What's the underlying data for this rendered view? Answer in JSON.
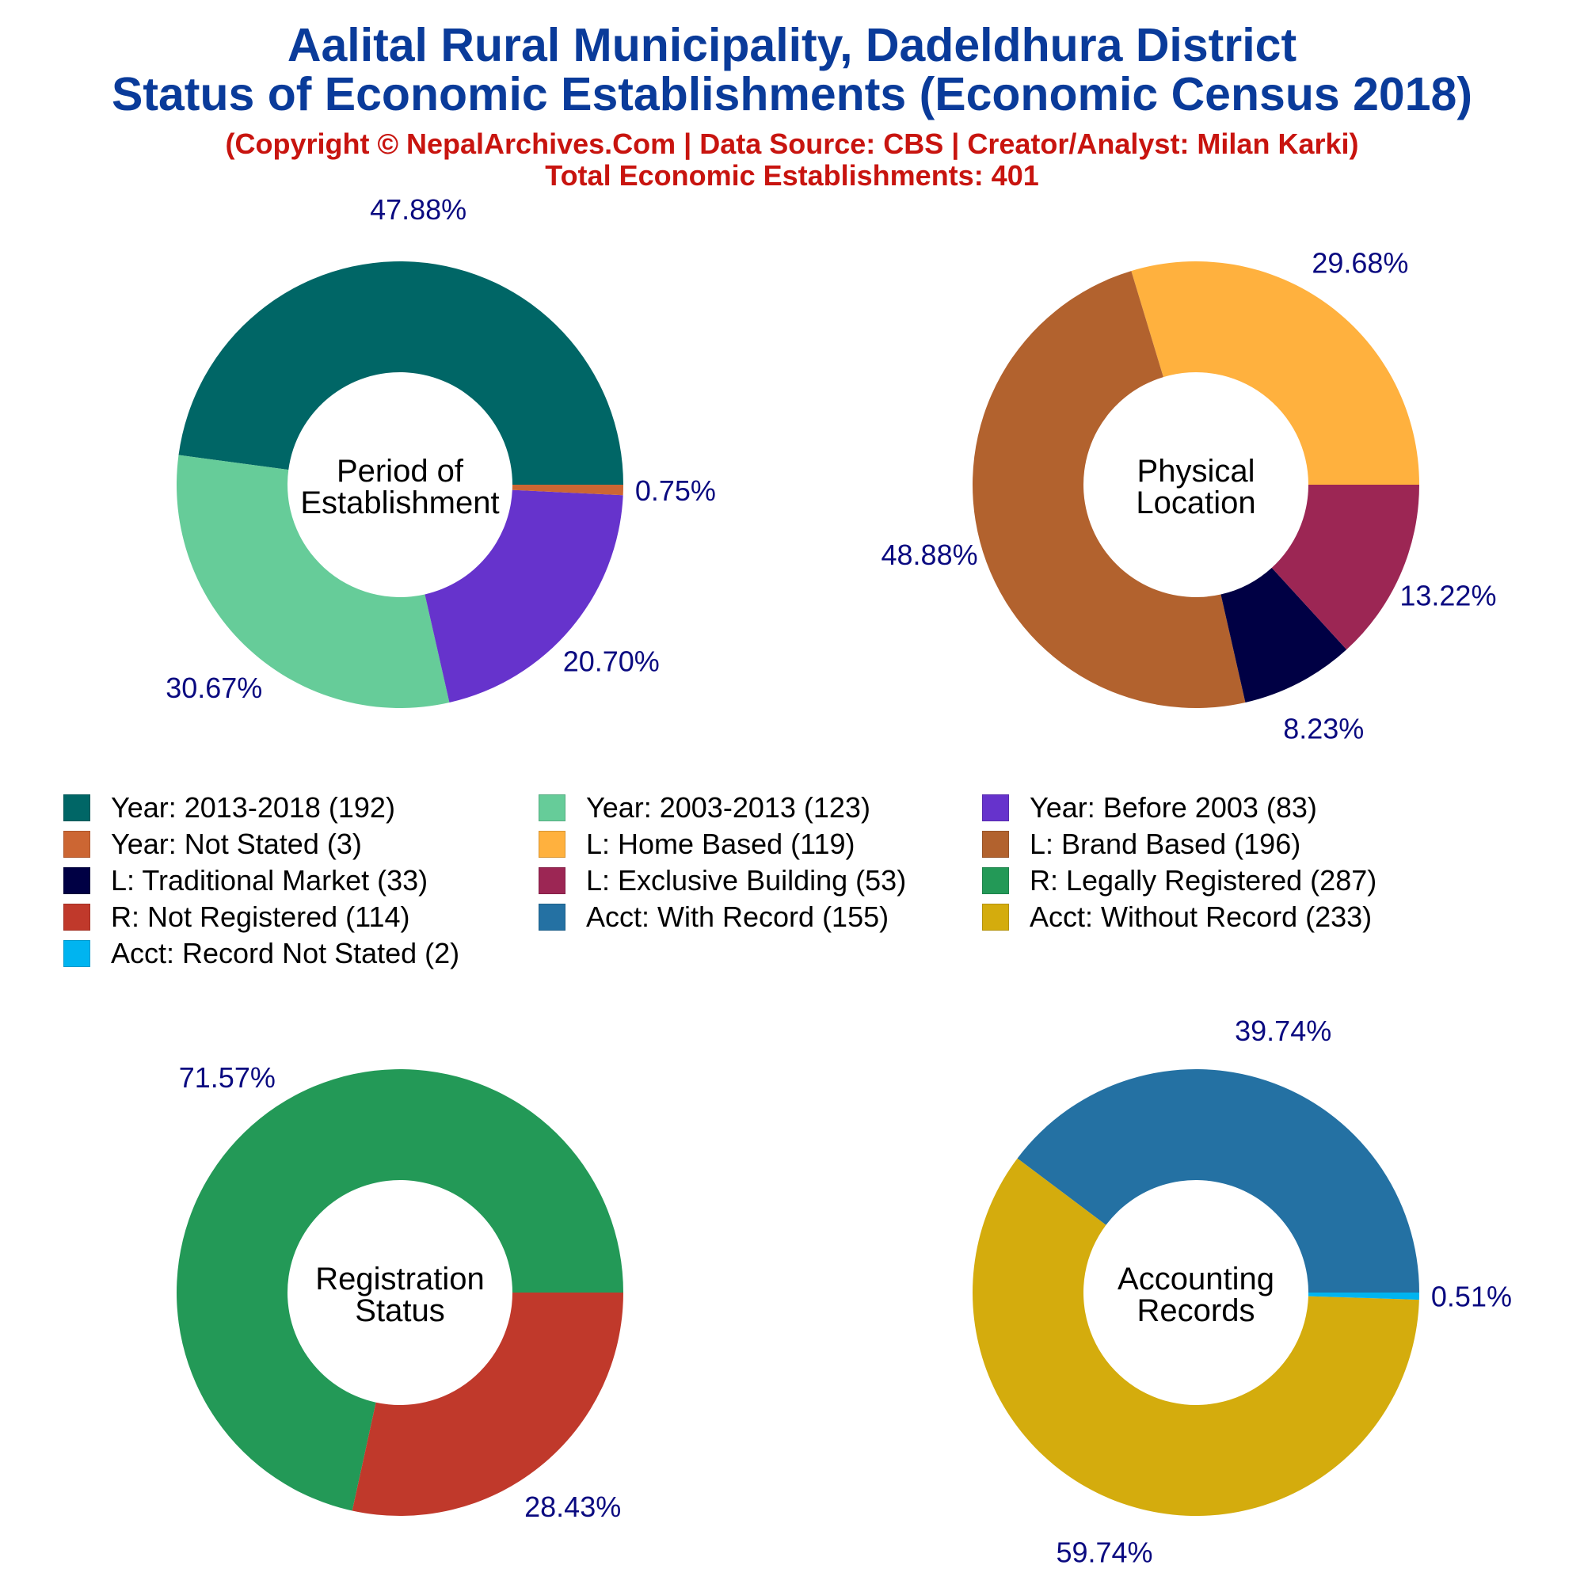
{
  "header": {
    "title_line1": "Aalital Rural Municipality, Dadeldhura District",
    "title_line2": "Status of Economic Establishments (Economic Census 2018)",
    "subtitle_line1": "(Copyright © NepalArchives.Com | Data Source: CBS | Creator/Analyst: Milan Karki)",
    "subtitle_line2": "Total Economic Establishments: 401"
  },
  "legend": [
    {
      "label": "Year: 2013-2018 (192)",
      "color": "#006666"
    },
    {
      "label": "Year: 2003-2013 (123)",
      "color": "#66cc99"
    },
    {
      "label": "Year: Before 2003 (83)",
      "color": "#6633cc"
    },
    {
      "label": "Year: Not Stated (3)",
      "color": "#cc6633"
    },
    {
      "label": "L: Home Based (119)",
      "color": "#ffb13e"
    },
    {
      "label": "L: Brand Based (196)",
      "color": "#b2622e"
    },
    {
      "label": "L: Traditional Market (33)",
      "color": "#000044"
    },
    {
      "label": "L: Exclusive Building (53)",
      "color": "#9c2654"
    },
    {
      "label": "R: Legally Registered (287)",
      "color": "#239957"
    },
    {
      "label": "R: Not Registered (114)",
      "color": "#c0392b"
    },
    {
      "label": "Acct: With Record (155)",
      "color": "#2471a3"
    },
    {
      "label": "Acct: Without Record (233)",
      "color": "#d4ac0d"
    },
    {
      "label": "Acct: Record Not Stated (2)",
      "color": "#00b4f0"
    }
  ],
  "chart_data": [
    {
      "type": "pie",
      "center_label": [
        "Period of",
        "Establishment"
      ],
      "slices": [
        {
          "name": "Year: 2013-2018",
          "value": 192,
          "percent_label": "47.88%",
          "color": "#006666"
        },
        {
          "name": "Year: 2003-2013",
          "value": 123,
          "percent_label": "30.67%",
          "color": "#66cc99"
        },
        {
          "name": "Year: Before 2003",
          "value": 83,
          "percent_label": "20.70%",
          "color": "#6633cc"
        },
        {
          "name": "Year: Not Stated",
          "value": 3,
          "percent_label": "0.75%",
          "color": "#cc6633"
        }
      ]
    },
    {
      "type": "pie",
      "center_label": [
        "Physical",
        "Location"
      ],
      "slices": [
        {
          "name": "L: Home Based",
          "value": 119,
          "percent_label": "29.68%",
          "color": "#ffb13e"
        },
        {
          "name": "L: Brand Based",
          "value": 196,
          "percent_label": "48.88%",
          "color": "#b2622e"
        },
        {
          "name": "L: Traditional Market",
          "value": 33,
          "percent_label": "8.23%",
          "color": "#000044"
        },
        {
          "name": "L: Exclusive Building",
          "value": 53,
          "percent_label": "13.22%",
          "color": "#9c2654"
        }
      ]
    },
    {
      "type": "pie",
      "center_label": [
        "Registration",
        "Status"
      ],
      "slices": [
        {
          "name": "R: Legally Registered",
          "value": 287,
          "percent_label": "71.57%",
          "color": "#239957"
        },
        {
          "name": "R: Not Registered",
          "value": 114,
          "percent_label": "28.43%",
          "color": "#c0392b"
        }
      ]
    },
    {
      "type": "pie",
      "center_label": [
        "Accounting",
        "Records"
      ],
      "slices": [
        {
          "name": "Acct: With Record",
          "value": 155,
          "percent_label": "39.74%",
          "color": "#2471a3"
        },
        {
          "name": "Acct: Without Record",
          "value": 233,
          "percent_label": "59.74%",
          "color": "#d4ac0d"
        },
        {
          "name": "Acct: Record Not Stated",
          "value": 2,
          "percent_label": "0.51%",
          "color": "#00b4f0"
        }
      ]
    }
  ]
}
